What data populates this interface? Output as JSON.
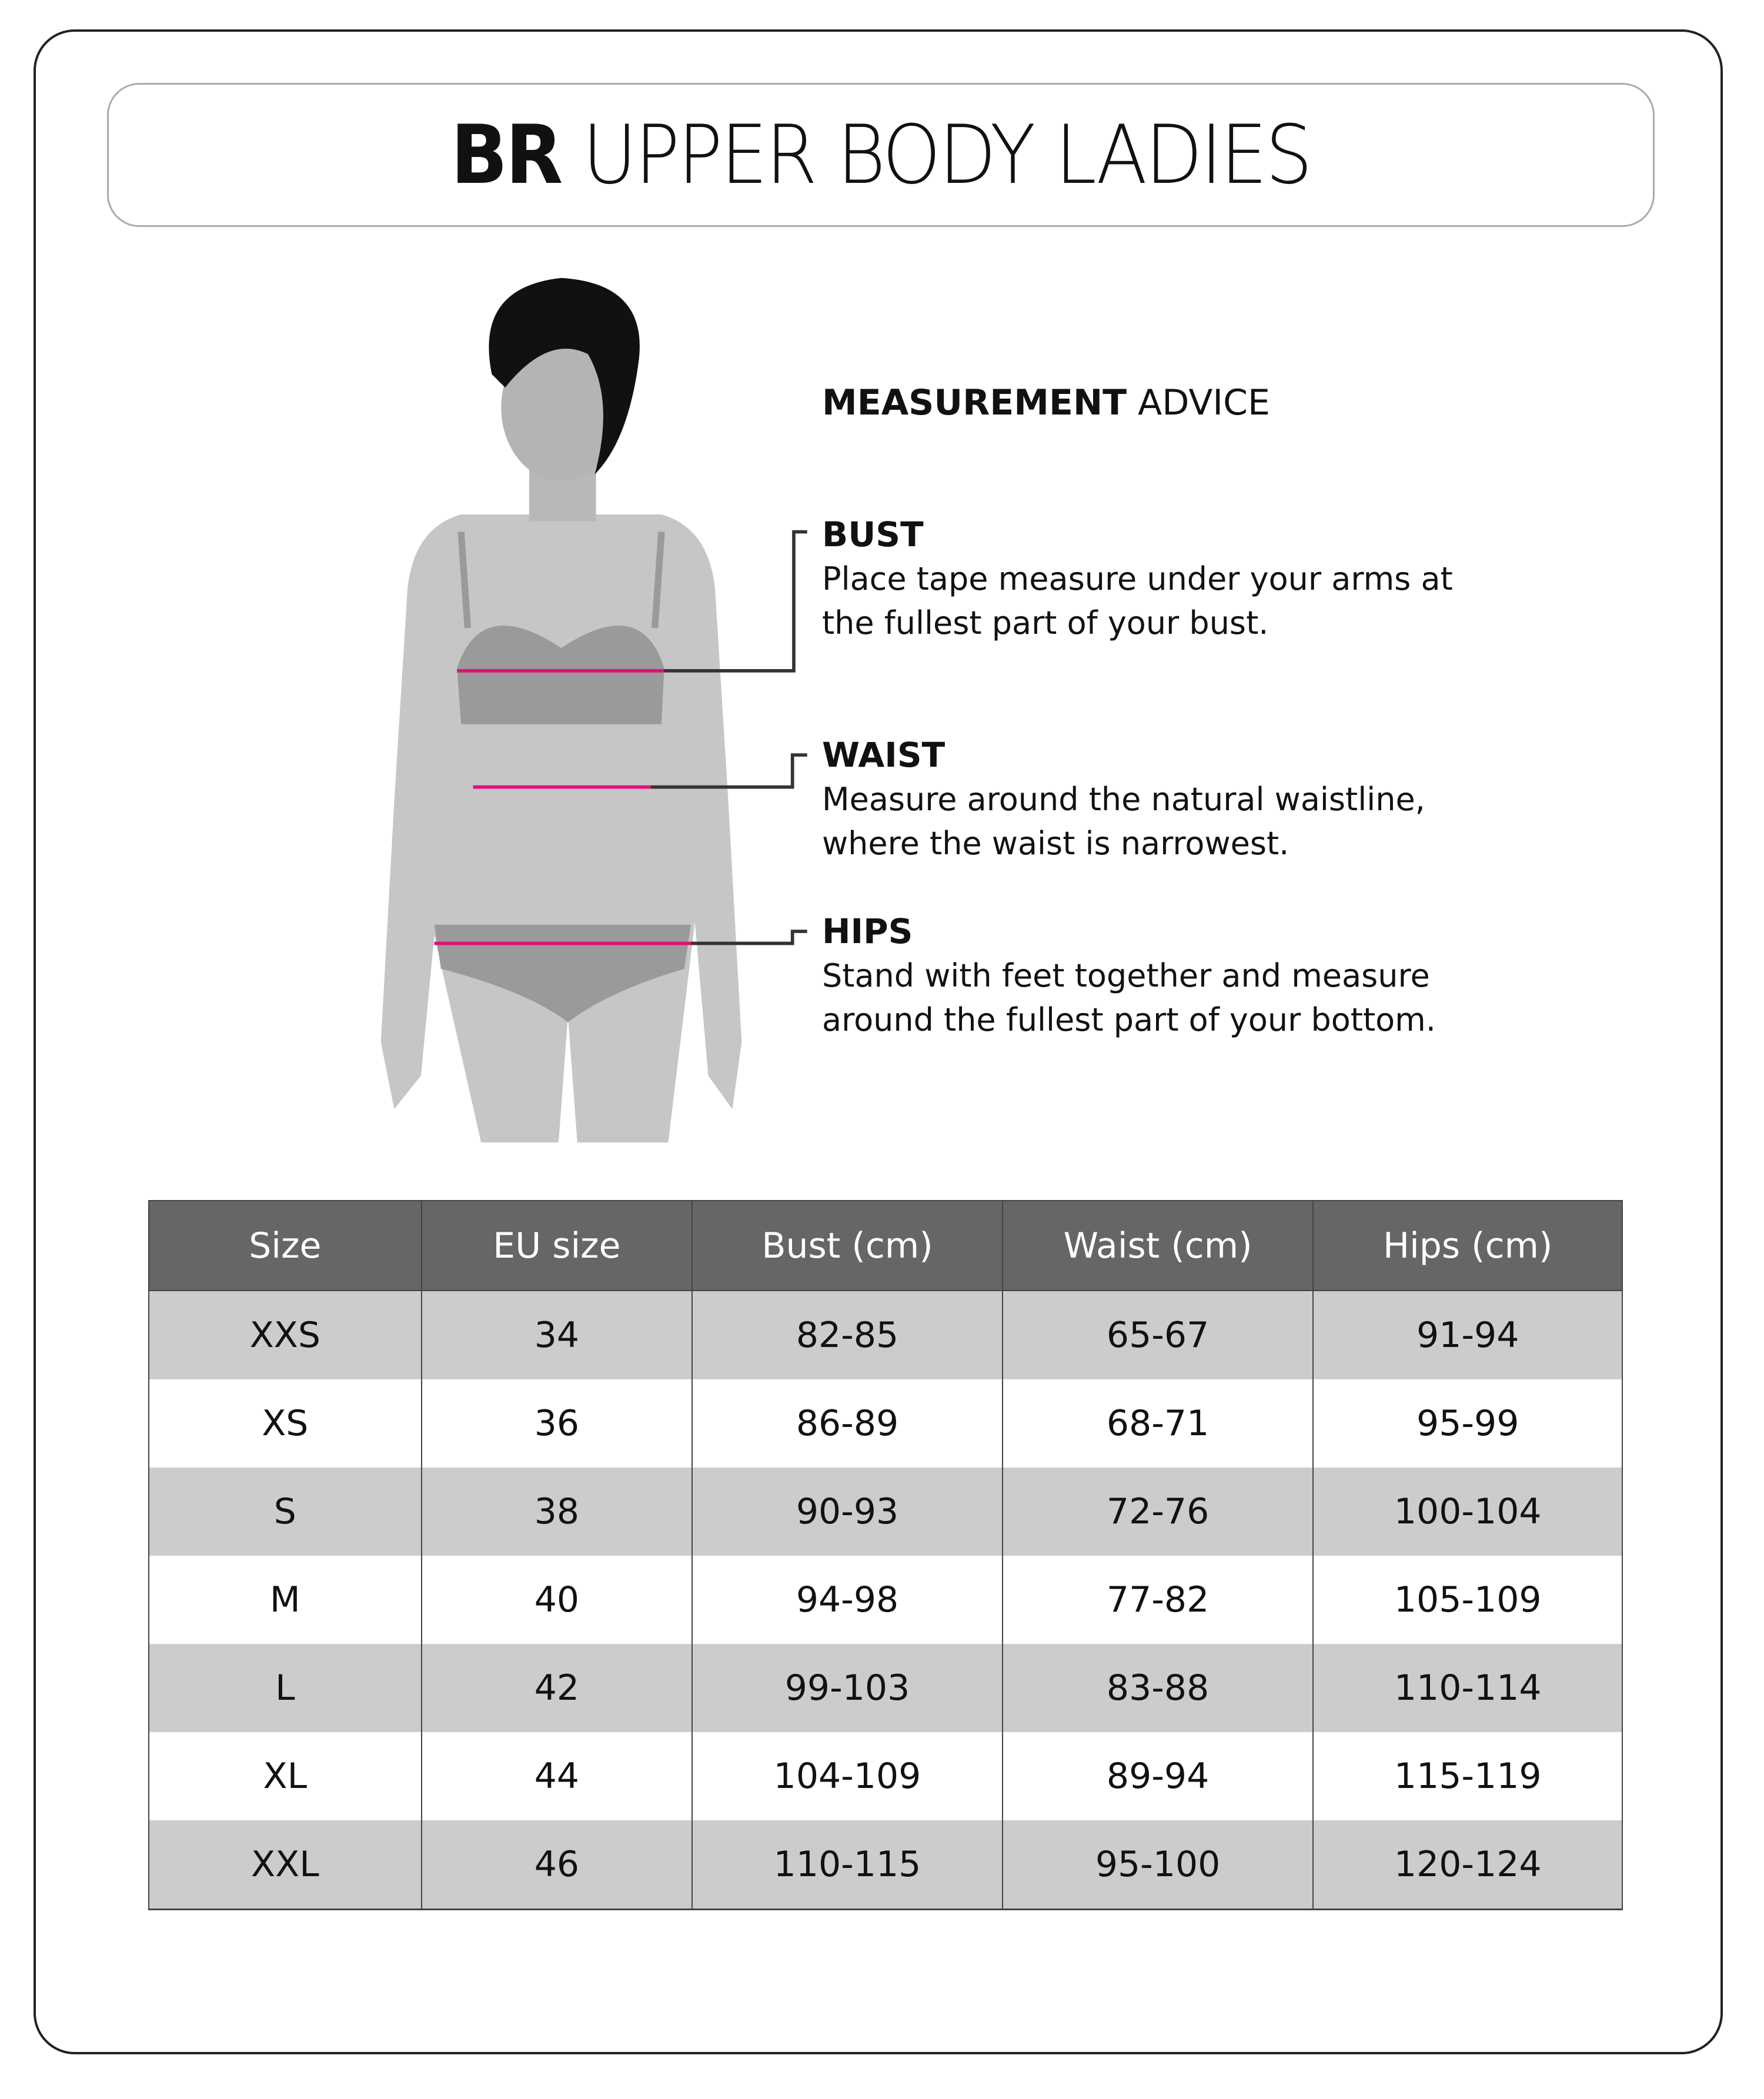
{
  "title": {
    "bold": "BR",
    "rest": "UPPER BODY LADIES"
  },
  "advice": {
    "heading_bold": "MEASUREMENT",
    "heading_rest": "ADVICE",
    "items": [
      {
        "label": "BUST",
        "lines": [
          "Place tape measure under your arms at",
          "the fullest part of your bust."
        ]
      },
      {
        "label": "WAIST",
        "lines": [
          "Measure around the natural waistline,",
          "where the waist is narrowest."
        ]
      },
      {
        "label": "HIPS",
        "lines": [
          "Stand with feet together and measure",
          "around the fullest part of your bottom."
        ]
      }
    ]
  },
  "colors": {
    "measure_line": "#e0107a",
    "header_bg": "#666666",
    "row_alt": "#cccccc",
    "figure": "#c6c6c6"
  },
  "table": {
    "headers": [
      "Size",
      "EU size",
      "Bust (cm)",
      "Waist (cm)",
      "Hips (cm)"
    ],
    "rows": [
      [
        "XXS",
        "34",
        "82-85",
        "65-67",
        "91-94"
      ],
      [
        "XS",
        "36",
        "86-89",
        "68-71",
        "95-99"
      ],
      [
        "S",
        "38",
        "90-93",
        "72-76",
        "100-104"
      ],
      [
        "M",
        "40",
        "94-98",
        "77-82",
        "105-109"
      ],
      [
        "L",
        "42",
        "99-103",
        "83-88",
        "110-114"
      ],
      [
        "XL",
        "44",
        "104-109",
        "89-94",
        "115-119"
      ],
      [
        "XXL",
        "46",
        "110-115",
        "95-100",
        "120-124"
      ]
    ]
  }
}
